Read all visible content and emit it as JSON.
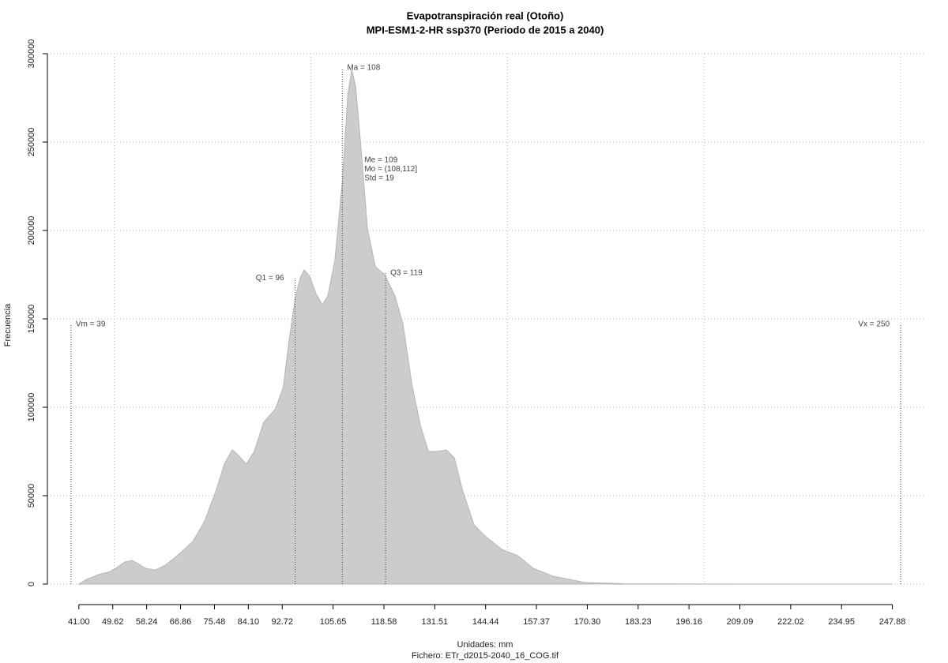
{
  "chart_data": {
    "type": "area",
    "title": "Evapotranspiración real (Otoño)",
    "subtitle": "MPI-ESM1-2-HR ssp370 (Periodo de 2015 a 2040)",
    "xlabel": "Unidades: mm",
    "caption": "Fichero: ETr_d2015-2040_16_COG.tif",
    "ylabel": "Frecuencia",
    "color": "#cccccc",
    "x": [
      41,
      43,
      46,
      49,
      51,
      52.7,
      54.5,
      56,
      58,
      60.5,
      63,
      66,
      70,
      73,
      76,
      78,
      80,
      81,
      83.6,
      85.6,
      88,
      91,
      93,
      94.5,
      96,
      97.3,
      98.3,
      99.7,
      101.3,
      102.9,
      104.3,
      106.1,
      108,
      109.4,
      110.4,
      111.4,
      112.8,
      114.4,
      116.4,
      118.8,
      121.4,
      123.4,
      125.8,
      127.9,
      129.9,
      131.9,
      134.5,
      136.5,
      138.5,
      141.5,
      144.5,
      148.6,
      152.6,
      156.6,
      161.6,
      169.7,
      179.7,
      201.8,
      247.9
    ],
    "values": [
      0,
      2700,
      5400,
      7100,
      9800,
      12500,
      13400,
      11600,
      8900,
      8000,
      10700,
      16000,
      24100,
      35700,
      53600,
      67900,
      75900,
      74100,
      67900,
      75000,
      91500,
      99100,
      111600,
      138400,
      161600,
      173200,
      177700,
      174100,
      164300,
      158000,
      162900,
      183000,
      227700,
      276800,
      291100,
      281200,
      245500,
      200900,
      179500,
      175000,
      162900,
      147300,
      111600,
      89300,
      75000,
      75000,
      75900,
      71400,
      53600,
      33500,
      26800,
      19600,
      16100,
      8900,
      4500,
      900,
      200,
      60,
      0
    ],
    "xlim": [
      33,
      256
    ],
    "ylim": [
      -11600,
      300000
    ],
    "xticks": [
      {
        "value": 41,
        "label": "41.00"
      },
      49.62,
      58.24,
      66.86,
      75.48,
      {
        "value": 84.1,
        "label": "84.10"
      },
      92.72,
      105.65,
      118.58,
      131.51,
      144.44,
      157.37,
      {
        "value": 170.3,
        "label": "170.30"
      },
      183.23,
      196.16,
      209.09,
      222.02,
      234.95,
      247.88
    ],
    "yticks": [
      0,
      50000,
      100000,
      150000,
      200000,
      250000,
      300000
    ],
    "xgrid": [
      50,
      100,
      150,
      200,
      250
    ],
    "grid": true,
    "annotations": [
      {
        "text": "Vm = 39",
        "x": 39,
        "y": 147000,
        "side": "right"
      },
      {
        "text": "Q1 = 96",
        "x": 96,
        "y": 173000,
        "side": "left"
      },
      {
        "text": "Ma = 108",
        "x": 108,
        "y": 292000,
        "side": "right"
      },
      {
        "text": "Q3 = 119",
        "x": 119,
        "y": 176000,
        "side": "right"
      },
      {
        "text": "Vx = 250",
        "x": 250,
        "y": 147000,
        "side": "left"
      }
    ],
    "stats": [
      "Me = 109",
      "Mo = (108,112]",
      "Std = 19"
    ]
  }
}
